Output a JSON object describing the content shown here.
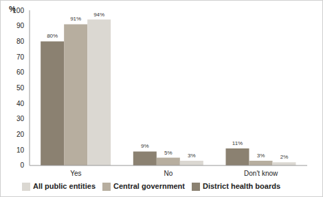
{
  "chart_data": {
    "type": "bar",
    "y_label": "%",
    "categories": [
      "Yes",
      "No",
      "Don't know"
    ],
    "series": [
      {
        "name": "District health boards",
        "color": "#8b8171",
        "values": [
          80,
          9,
          11
        ],
        "value_labels": [
          "80%",
          "9%",
          "11%"
        ]
      },
      {
        "name": "Central government",
        "color": "#b7ae9f",
        "values": [
          91,
          5,
          3
        ],
        "value_labels": [
          "91%",
          "5%",
          "3%"
        ]
      },
      {
        "name": "All public entities",
        "color": "#dbd8d2",
        "values": [
          94,
          3,
          2
        ],
        "value_labels": [
          "94%",
          "3%",
          "2%"
        ]
      }
    ],
    "ylim": [
      0,
      100
    ],
    "yticks": [
      0,
      10,
      20,
      30,
      40,
      50,
      60,
      70,
      80,
      90,
      100
    ],
    "grid": false,
    "legend": "bottom",
    "data_labels": true
  }
}
